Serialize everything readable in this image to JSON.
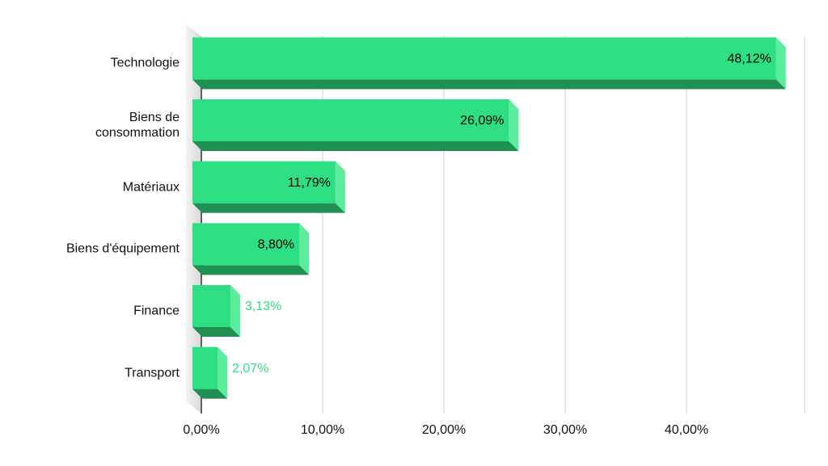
{
  "chart_data": {
    "type": "bar3d",
    "orientation": "horizontal",
    "categories": [
      "Technologie",
      "Biens de\nconsommation",
      "Matériaux",
      "Biens d'équipement",
      "Finance",
      "Transport"
    ],
    "values": [
      48.12,
      26.09,
      11.79,
      8.8,
      3.13,
      2.07
    ],
    "value_labels": [
      "48,12%",
      "26,09%",
      "11,79%",
      "8,80%",
      "3,13%",
      "2,07%"
    ],
    "color": "#2ede82",
    "xlim": [
      0,
      50
    ],
    "xticks": [
      {
        "value": 0,
        "label": "0,00%"
      },
      {
        "value": 10,
        "label": "10,00%"
      },
      {
        "value": 20,
        "label": "20,00%"
      },
      {
        "value": 30,
        "label": "30,00%"
      },
      {
        "value": 40,
        "label": "40,00%"
      }
    ],
    "grid": true
  }
}
